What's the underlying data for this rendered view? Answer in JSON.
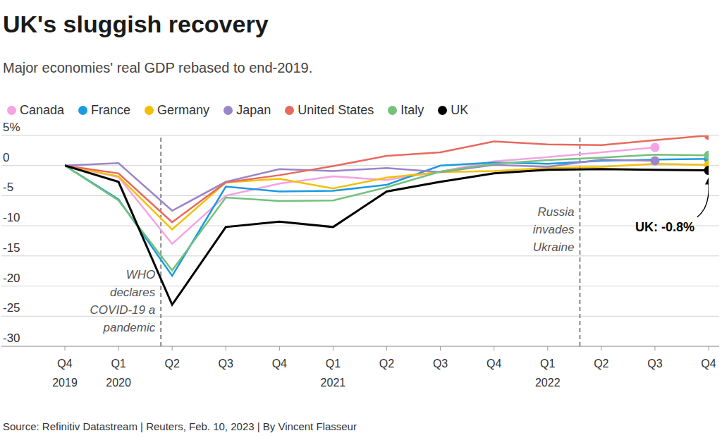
{
  "chart_data": {
    "type": "line",
    "title": "UK's sluggish recovery",
    "subtitle": "Major economies' real GDP rebased to end-2019.",
    "source": "Source: Refinitiv Datastream | Reuters, Feb. 10, 2023 | By Vincent Flasseur",
    "categories": [
      "Q4 2019",
      "Q1 2020",
      "Q2",
      "Q3",
      "Q4",
      "Q1 2021",
      "Q2",
      "Q3",
      "Q4",
      "Q1 2022",
      "Q2",
      "Q3",
      "Q4"
    ],
    "series": [
      {
        "name": "Canada",
        "color": "#f4a3e4",
        "values": [
          0,
          -1.9,
          -13.0,
          -5.0,
          -3.0,
          -1.8,
          -2.4,
          -1.0,
          0.7,
          1.4,
          2.2,
          3.0,
          null
        ]
      },
      {
        "name": "France",
        "color": "#1a9be0",
        "values": [
          0,
          -5.6,
          -18.3,
          -3.5,
          -4.3,
          -4.2,
          -3.2,
          0.0,
          0.5,
          0.3,
          0.8,
          1.0,
          1.1
        ]
      },
      {
        "name": "Germany",
        "color": "#f3c000",
        "values": [
          0,
          -1.8,
          -10.6,
          -2.8,
          -2.2,
          -3.8,
          -2.0,
          -1.1,
          -0.9,
          -0.4,
          -0.2,
          0.3,
          0.1
        ]
      },
      {
        "name": "Japan",
        "color": "#9a86c8",
        "values": [
          0,
          0.4,
          -7.5,
          -2.7,
          -0.6,
          -0.9,
          -0.4,
          -1.1,
          0.1,
          -0.2,
          1.0,
          0.8,
          null
        ]
      },
      {
        "name": "United States",
        "color": "#e8695e",
        "values": [
          0,
          -1.3,
          -9.4,
          -2.8,
          -1.6,
          -0.1,
          1.6,
          2.2,
          4.0,
          3.5,
          3.4,
          4.2,
          5.0
        ]
      },
      {
        "name": "Italy",
        "color": "#73c17a",
        "values": [
          0,
          -5.8,
          -17.4,
          -5.3,
          -5.9,
          -5.8,
          -3.6,
          -1.0,
          0.3,
          0.9,
          1.3,
          1.8,
          1.7
        ]
      },
      {
        "name": "UK",
        "color": "#000000",
        "values": [
          0,
          -2.7,
          -23.1,
          -10.2,
          -9.3,
          -10.2,
          -4.3,
          -2.7,
          -1.3,
          -0.7,
          -0.6,
          -0.7,
          -0.8
        ]
      }
    ],
    "ylim": [
      -30,
      5
    ],
    "yticks": [
      {
        "value": 5,
        "label": "5%"
      },
      0,
      -5,
      -10,
      -15,
      -20,
      -25,
      -30
    ],
    "grid": true,
    "legend": "top",
    "annotations": [
      {
        "text": "WHO\ndeclares\nCOVID-19 a\npandemic",
        "x": 1.79
      },
      {
        "text": "Russia\ninvades\nUkraine",
        "x": 9.6
      },
      {
        "text": "UK: -0.8%",
        "series": "UK"
      }
    ]
  }
}
